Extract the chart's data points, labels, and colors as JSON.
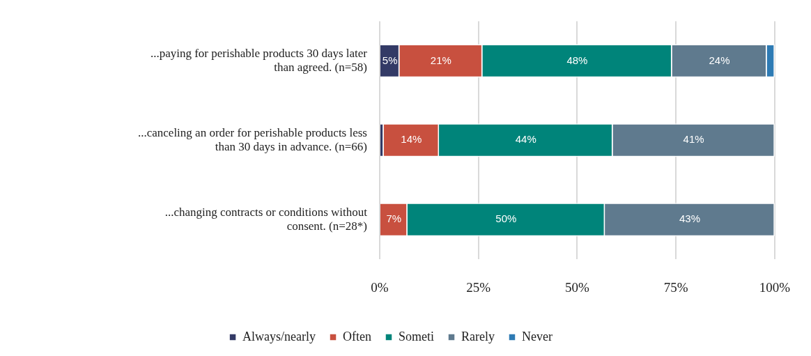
{
  "chart_data": {
    "type": "bar",
    "orientation": "horizontal",
    "stacked": true,
    "categories": [
      "...paying for perishable products 30 days later than agreed. (n=58)",
      "...canceling an order for perishable products less than 30 days in advance. (n=66)",
      "...changing contracts or conditions without consent. (n=28*)"
    ],
    "series": [
      {
        "name": "Always/nearly",
        "color": "#333a66",
        "values": [
          5,
          1,
          0
        ],
        "value_labels": [
          "5%",
          null,
          null
        ]
      },
      {
        "name": "Often",
        "color": "#c8503f",
        "values": [
          21,
          14,
          7
        ],
        "value_labels": [
          "21%",
          "14%",
          "7%"
        ]
      },
      {
        "name": "Someti",
        "color": "#00847a",
        "values": [
          48,
          44,
          50
        ],
        "value_labels": [
          "48%",
          "44%",
          "50%"
        ]
      },
      {
        "name": "Rarely",
        "color": "#5f7a8e",
        "values": [
          24,
          41,
          43
        ],
        "value_labels": [
          "24%",
          "41%",
          "43%"
        ]
      },
      {
        "name": "Never",
        "color": "#2e7bb4",
        "values": [
          2,
          0,
          0
        ],
        "value_labels": [
          null,
          null,
          null
        ]
      }
    ],
    "xlim": [
      0,
      100
    ],
    "xticks": [
      {
        "value": 0,
        "label": "0%"
      },
      {
        "value": 25,
        "label": "25%"
      },
      {
        "value": 50,
        "label": "50%"
      },
      {
        "value": 75,
        "label": "75%"
      },
      {
        "value": 100,
        "label": "100%"
      }
    ],
    "grid": "x",
    "legend": "bottom"
  }
}
